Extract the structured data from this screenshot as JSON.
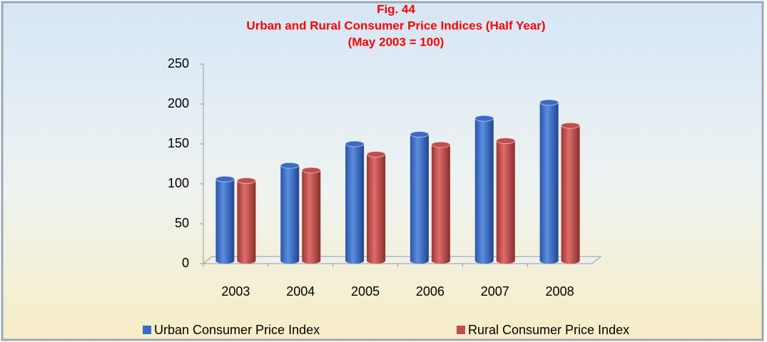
{
  "chart_data": {
    "type": "bar",
    "title": [
      "Fig. 44",
      "Urban and Rural Consumer Price Indices (Half Year)",
      "(May 2003 = 100)"
    ],
    "categories": [
      "2003",
      "2004",
      "2005",
      "2006",
      "2007",
      "2008"
    ],
    "series": [
      {
        "name": "Urban Consumer Price Index",
        "color": "#3a6cc4",
        "values": [
          106,
          123,
          150,
          162,
          182,
          202
        ]
      },
      {
        "name": "Rural Consumer Price Index",
        "color": "#c0504d",
        "values": [
          104,
          117,
          137,
          149,
          154,
          173
        ]
      }
    ],
    "ylim": [
      0,
      250
    ],
    "yticks": [
      0,
      50,
      100,
      150,
      200,
      250
    ]
  }
}
